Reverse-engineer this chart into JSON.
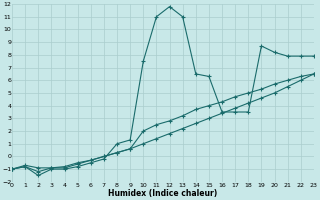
{
  "xlabel": "Humidex (Indice chaleur)",
  "xlim": [
    0,
    23
  ],
  "ylim": [
    -2,
    12
  ],
  "xticks": [
    0,
    1,
    2,
    3,
    4,
    5,
    6,
    7,
    8,
    9,
    10,
    11,
    12,
    13,
    14,
    15,
    16,
    17,
    18,
    19,
    20,
    21,
    22,
    23
  ],
  "yticks": [
    -2,
    -1,
    0,
    1,
    2,
    3,
    4,
    5,
    6,
    7,
    8,
    9,
    10,
    11,
    12
  ],
  "bg_color": "#c8e8e8",
  "grid_color": "#aacece",
  "line_color": "#1a6b6b",
  "line1_x": [
    0,
    1,
    2,
    3,
    4,
    5,
    6,
    7,
    8,
    9,
    10,
    11,
    12,
    13,
    14,
    15,
    16,
    17,
    18,
    19,
    20,
    21,
    22,
    23
  ],
  "line1_y": [
    -1.0,
    -0.8,
    -1.5,
    -1.0,
    -1.0,
    -0.8,
    -0.5,
    -0.2,
    1.0,
    1.3,
    7.5,
    11.0,
    11.8,
    11.0,
    6.5,
    6.3,
    3.5,
    3.5,
    3.5,
    8.7,
    8.2,
    7.9,
    7.9,
    7.9
  ],
  "line2_x": [
    0,
    1,
    2,
    3,
    4,
    5,
    6,
    7,
    8,
    9,
    10,
    11,
    12,
    13,
    14,
    15,
    16,
    17,
    18,
    19,
    20,
    21,
    22,
    23
  ],
  "line2_y": [
    -1.0,
    -0.7,
    -0.9,
    -0.9,
    -0.8,
    -0.5,
    -0.3,
    0.0,
    0.3,
    0.6,
    2.0,
    2.5,
    2.8,
    3.2,
    3.7,
    4.0,
    4.3,
    4.7,
    5.0,
    5.3,
    5.7,
    6.0,
    6.3,
    6.5
  ],
  "line3_x": [
    0,
    1,
    2,
    3,
    4,
    5,
    6,
    7,
    8,
    9,
    10,
    11,
    12,
    13,
    14,
    15,
    16,
    17,
    18,
    19,
    20,
    21,
    22,
    23
  ],
  "line3_y": [
    -1.0,
    -0.8,
    -1.2,
    -0.9,
    -0.9,
    -0.6,
    -0.3,
    0.0,
    0.3,
    0.6,
    1.0,
    1.4,
    1.8,
    2.2,
    2.6,
    3.0,
    3.4,
    3.8,
    4.2,
    4.6,
    5.0,
    5.5,
    6.0,
    6.5
  ]
}
